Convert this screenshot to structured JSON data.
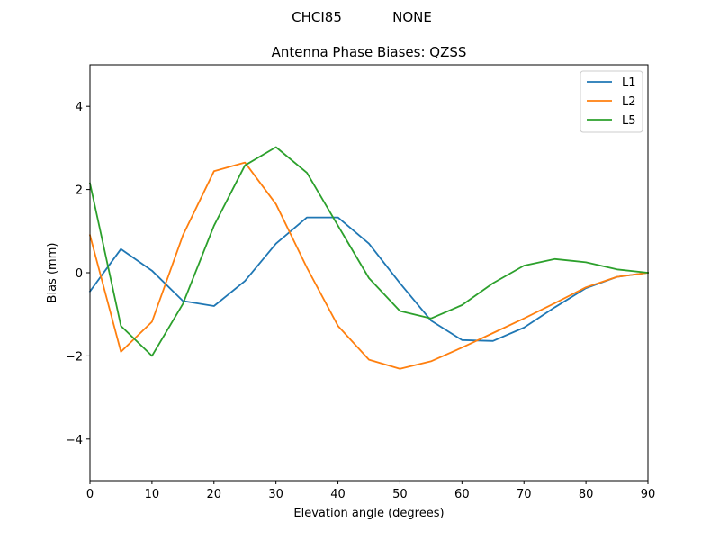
{
  "figure": {
    "suptitle_left": "CHCI85",
    "suptitle_right": "NONE"
  },
  "chart_data": {
    "type": "line",
    "title": "Antenna Phase Biases: QZSS",
    "xlabel": "Elevation angle (degrees)",
    "ylabel": "Bias (mm)",
    "xlim": [
      0,
      90
    ],
    "ylim": [
      -5,
      5
    ],
    "xticks": [
      0,
      10,
      20,
      30,
      40,
      50,
      60,
      70,
      80,
      90
    ],
    "yticks": [
      -4,
      -2,
      0,
      2,
      4
    ],
    "ytick_labels": [
      "−4",
      "−2",
      "0",
      "2",
      "4"
    ],
    "grid": false,
    "legend_position": "top-right",
    "x": [
      0,
      5,
      10,
      15,
      20,
      25,
      30,
      35,
      40,
      45,
      50,
      55,
      60,
      65,
      70,
      75,
      80,
      85,
      90
    ],
    "series": [
      {
        "name": "L1",
        "color": "#1f77b4",
        "values": [
          -0.45,
          0.57,
          0.05,
          -0.68,
          -0.8,
          -0.2,
          0.7,
          1.33,
          1.33,
          0.7,
          -0.25,
          -1.15,
          -1.62,
          -1.64,
          -1.32,
          -0.83,
          -0.37,
          -0.1,
          0.0
        ]
      },
      {
        "name": "L2",
        "color": "#ff7f0e",
        "values": [
          0.9,
          -1.9,
          -1.18,
          0.9,
          2.44,
          2.65,
          1.65,
          0.12,
          -1.28,
          -2.09,
          -2.31,
          -2.13,
          -1.8,
          -1.45,
          -1.1,
          -0.73,
          -0.35,
          -0.1,
          0.0
        ]
      },
      {
        "name": "L5",
        "color": "#2ca02c",
        "values": [
          2.15,
          -1.28,
          -2.0,
          -0.75,
          1.13,
          2.58,
          3.02,
          2.4,
          1.13,
          -0.13,
          -0.92,
          -1.1,
          -0.78,
          -0.25,
          0.17,
          0.33,
          0.25,
          0.08,
          0.0
        ]
      }
    ]
  }
}
